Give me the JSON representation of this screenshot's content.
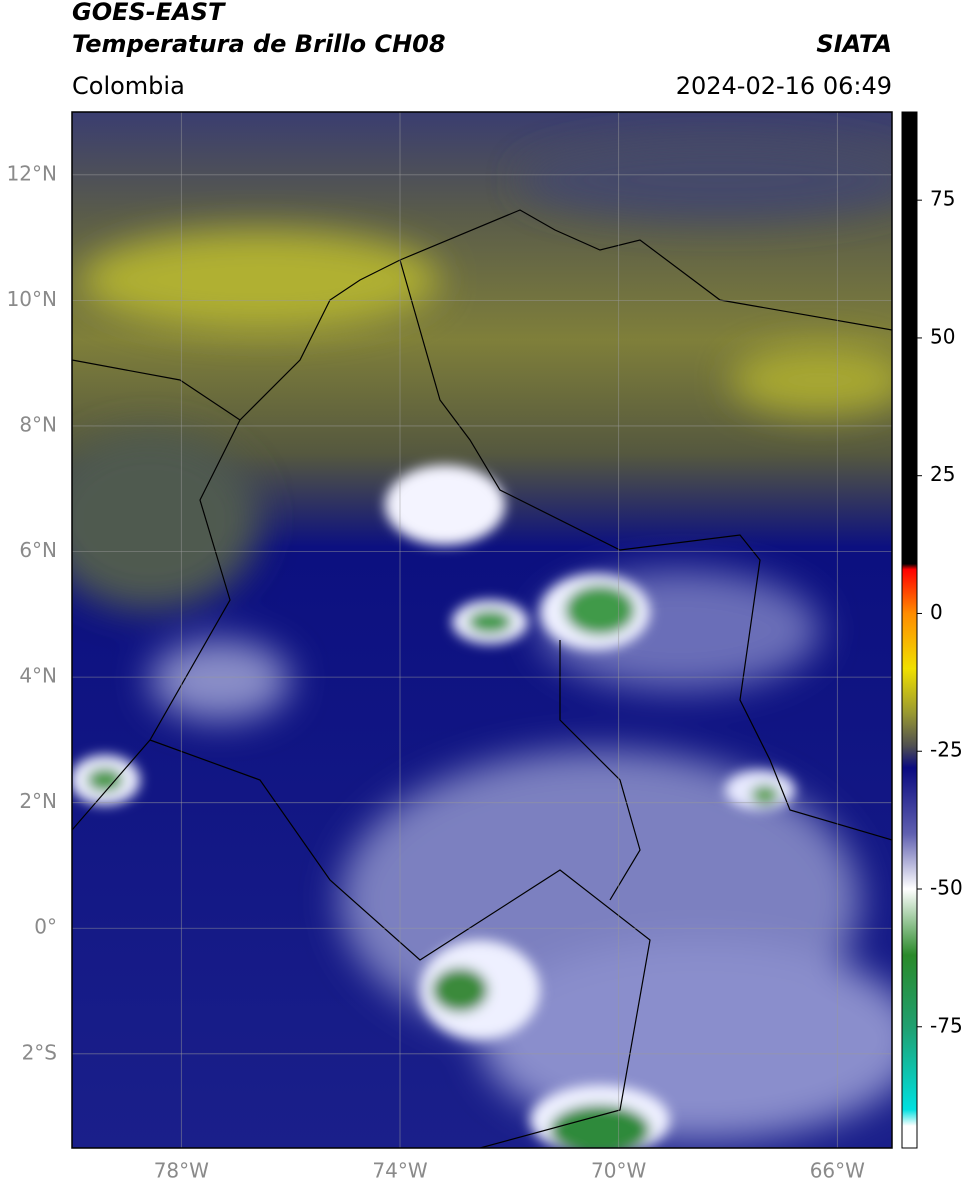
{
  "header": {
    "title": "GOES-EAST",
    "subtitle": "Temperatura de Brillo CH08",
    "source": "SIATA",
    "region": "Colombia",
    "timestamp": "2024-02-16 06:49"
  },
  "map": {
    "xlim": [
      -80,
      -65
    ],
    "ylim": [
      -3.5,
      13
    ],
    "xticks": [
      {
        "value": -78,
        "label": "78°W"
      },
      {
        "value": -74,
        "label": "74°W"
      },
      {
        "value": -70,
        "label": "70°W"
      },
      {
        "value": -66,
        "label": "66°W"
      }
    ],
    "yticks": [
      {
        "value": 12,
        "label": "12°N"
      },
      {
        "value": 10,
        "label": "10°N"
      },
      {
        "value": 8,
        "label": "8°N"
      },
      {
        "value": 6,
        "label": "6°N"
      },
      {
        "value": 4,
        "label": "4°N"
      },
      {
        "value": 2,
        "label": "2°N"
      },
      {
        "value": 0,
        "label": "0°"
      },
      {
        "value": -2,
        "label": "2°S"
      }
    ],
    "grid": true
  },
  "colorbar": {
    "lim": [
      -97,
      91
    ],
    "ticks": [
      75,
      50,
      25,
      0,
      -25,
      -50,
      -75
    ],
    "colormap": [
      {
        "value": 91,
        "color": "#000000"
      },
      {
        "value": 9,
        "color": "#000000"
      },
      {
        "value": 8,
        "color": "#ff0000"
      },
      {
        "value": 0,
        "color": "#ff8c00"
      },
      {
        "value": -10,
        "color": "#f0e000"
      },
      {
        "value": -18,
        "color": "#9a9a30"
      },
      {
        "value": -24,
        "color": "#505050"
      },
      {
        "value": -28,
        "color": "#0a0a80"
      },
      {
        "value": -40,
        "color": "#6060b0"
      },
      {
        "value": -50,
        "color": "#ffffff"
      },
      {
        "value": -62,
        "color": "#2a8a2a"
      },
      {
        "value": -75,
        "color": "#20a070"
      },
      {
        "value": -90,
        "color": "#00e0e0"
      },
      {
        "value": -93,
        "color": "#ffffff"
      },
      {
        "value": -97,
        "color": "#ffffff"
      }
    ]
  }
}
